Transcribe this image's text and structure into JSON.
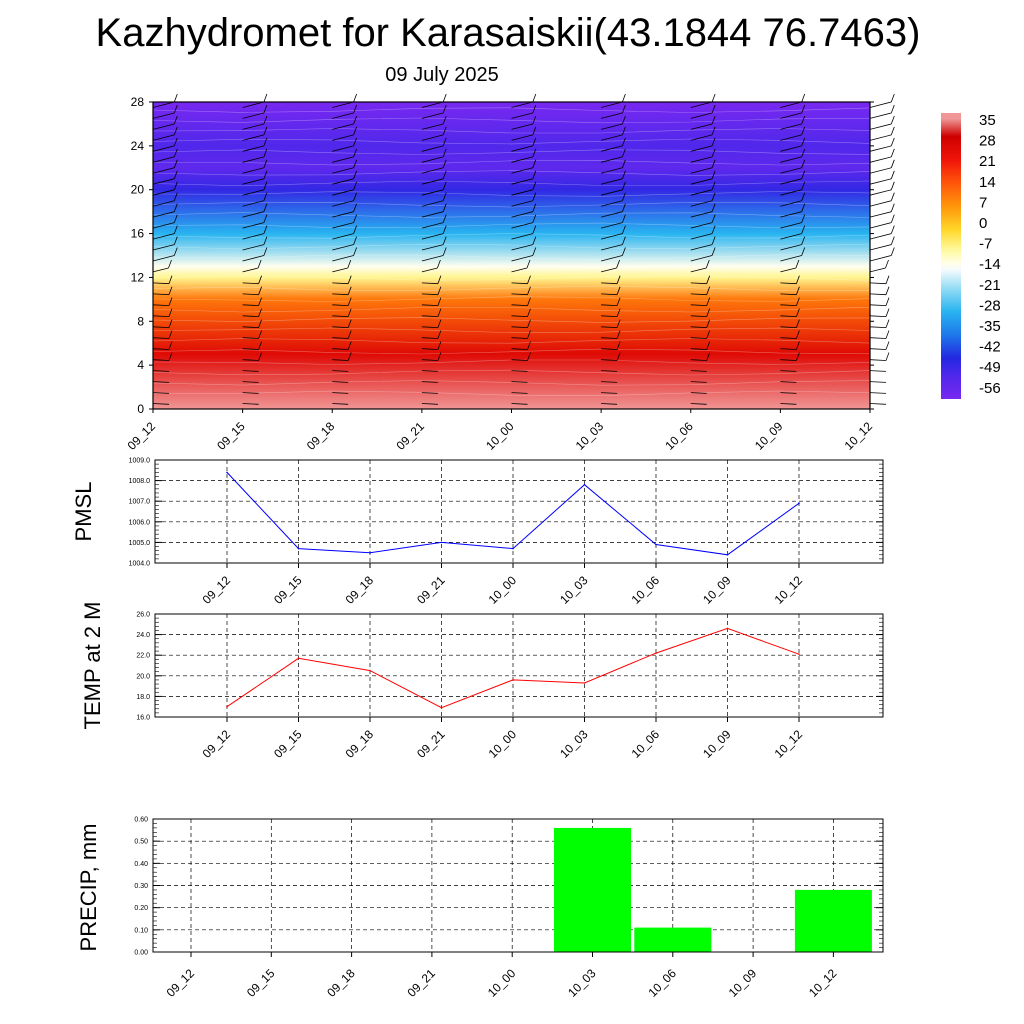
{
  "title": "Kazhydromet for Karasaiskii(43.1844 76.7463)",
  "date": "09 July 2025",
  "times": [
    "09_12",
    "09_15",
    "09_18",
    "09_21",
    "10_00",
    "10_03",
    "10_06",
    "10_09",
    "10_12"
  ],
  "colors": {
    "pmsl": "#0000ff",
    "temp": "#ff0000",
    "precip": "#00ff00"
  },
  "chart_data": [
    {
      "type": "heatmap",
      "title": "",
      "xlabel": "",
      "ylabel": "",
      "x": [
        "09_12",
        "09_15",
        "09_18",
        "09_21",
        "10_00",
        "10_03",
        "10_06",
        "10_09",
        "10_12"
      ],
      "yticks": [
        "0",
        "4",
        "8",
        "12",
        "16",
        "20",
        "24",
        "28"
      ],
      "ylim": [
        0,
        28
      ],
      "colorbar_labels": [
        "35",
        "28",
        "21",
        "14",
        "7",
        "0",
        "-7",
        "-14",
        "-21",
        "-28",
        "-35",
        "-42",
        "-49",
        "-56"
      ],
      "colorbar_range": [
        -60,
        38
      ],
      "temperature_profile": [
        {
          "level": 0,
          "value": 36
        },
        {
          "level": 5,
          "value": 26
        },
        {
          "level": 10,
          "value": 10
        },
        {
          "level": 12,
          "value": -8
        },
        {
          "level": 13,
          "value": -14
        },
        {
          "level": 16,
          "value": -30
        },
        {
          "level": 20,
          "value": -48
        },
        {
          "level": 22,
          "value": -55
        },
        {
          "level": 24,
          "value": -52
        },
        {
          "level": 28,
          "value": -60
        }
      ],
      "wind_barbs": true
    },
    {
      "type": "line",
      "ylabel": "PMSL",
      "categories": [
        "09_12",
        "09_15",
        "09_18",
        "09_21",
        "10_00",
        "10_03",
        "10_06",
        "10_09",
        "10_12"
      ],
      "values": [
        1008.4,
        1004.7,
        1004.5,
        1005.0,
        1004.7,
        1007.8,
        1004.9,
        1004.4,
        1006.9
      ],
      "ylim": [
        1004.0,
        1009.0
      ],
      "yticks": [
        "1004.0",
        "1005.0",
        "1006.0",
        "1007.0",
        "1008.0",
        "1009.0"
      ],
      "grid": true
    },
    {
      "type": "line",
      "ylabel": "TEMP at 2 M",
      "categories": [
        "09_12",
        "09_15",
        "09_18",
        "09_21",
        "10_00",
        "10_03",
        "10_06",
        "10_09",
        "10_12"
      ],
      "values": [
        17.0,
        21.7,
        20.5,
        16.9,
        19.6,
        19.3,
        22.2,
        24.6,
        22.1
      ],
      "ylim": [
        16.0,
        26.0
      ],
      "yticks": [
        "16.0",
        "18.0",
        "20.0",
        "22.0",
        "24.0",
        "26.0"
      ],
      "grid": true
    },
    {
      "type": "bar",
      "ylabel": "PRECIP, mm",
      "categories": [
        "09_12",
        "09_15",
        "09_18",
        "09_21",
        "10_00",
        "10_03",
        "10_06",
        "10_09",
        "10_12"
      ],
      "values": [
        0,
        0,
        0,
        0,
        0,
        0.56,
        0.11,
        0,
        0.28
      ],
      "ylim": [
        0,
        0.6
      ],
      "yticks": [
        "0.00",
        "0.10",
        "0.20",
        "0.30",
        "0.40",
        "0.50",
        "0.60"
      ],
      "grid": true
    }
  ]
}
